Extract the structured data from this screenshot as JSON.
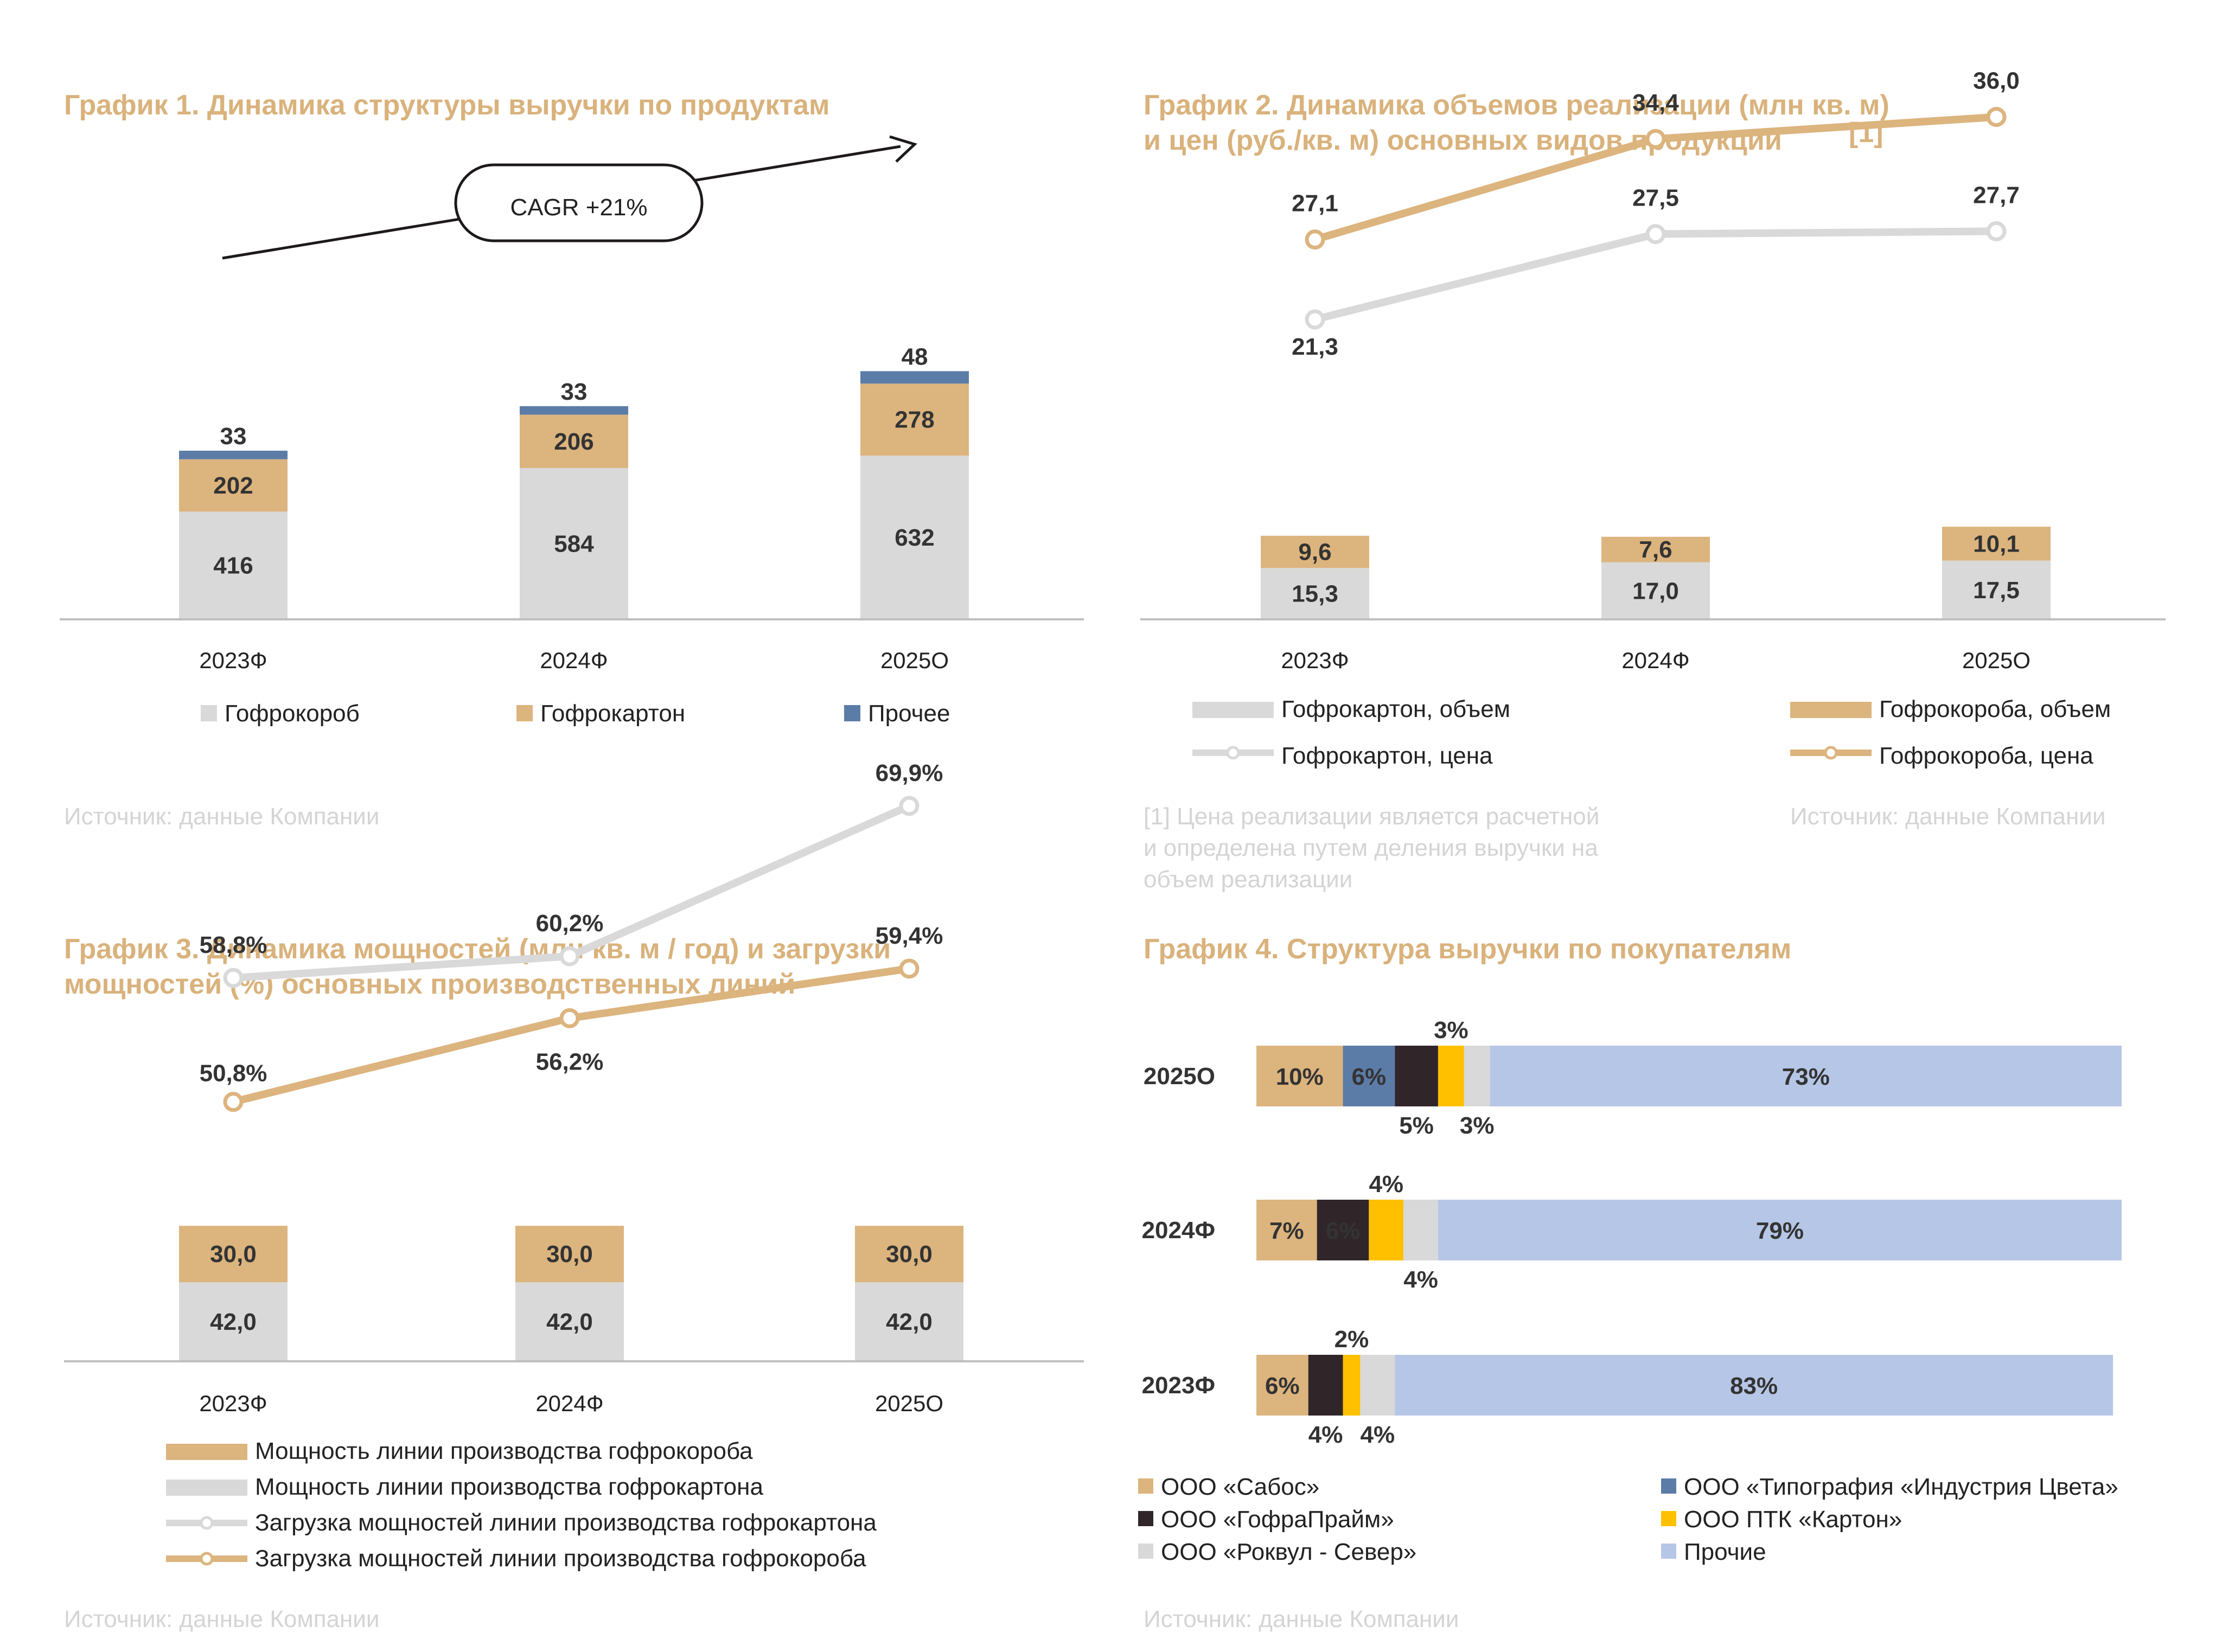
{
  "colors": {
    "tan": "#DCB47E",
    "grey": "#D9D9D9",
    "blue": "#5C7CA8",
    "dark": "#30262A",
    "yellow": "#FFC000",
    "lightblue": "#B6C6E6",
    "title": "#D9B27C",
    "source": "#D4D4D4"
  },
  "chart_data": [
    {
      "id": "chart1",
      "type": "bar",
      "stacked": true,
      "title": "График 1. Динамика структуры выручки по продуктам",
      "categories": [
        "2023Ф",
        "2024Ф",
        "2025О"
      ],
      "series": [
        {
          "name": "Гофрокороб",
          "values": [
            416,
            584,
            632
          ],
          "color": "#D9D9D9"
        },
        {
          "name": "Гофрокартон",
          "values": [
            202,
            206,
            278
          ],
          "color": "#DCB47E"
        },
        {
          "name": "Прочее",
          "values": [
            33,
            33,
            48
          ],
          "color": "#5C7CA8"
        }
      ],
      "annotation": "CAGR +21%",
      "legend_position": "bottom",
      "source": "Источник: данные Компании"
    },
    {
      "id": "chart2",
      "type": "bar+line",
      "stacked": true,
      "title_lines": [
        "График 2. Динамика объемов реализации (млн кв. м)",
        "и цен (руб./кв. м) основных видов продукции"
      ],
      "title_footnote_mark": "[1]",
      "categories": [
        "2023Ф",
        "2024Ф",
        "2025О"
      ],
      "bars": [
        {
          "name": "Гофрокартон, объем",
          "values": [
            15.3,
            17.0,
            17.5
          ],
          "labels": [
            "15,3",
            "17,0",
            "17,5"
          ],
          "color": "#D9D9D9"
        },
        {
          "name": "Гофрокороба, объем",
          "values": [
            9.6,
            7.6,
            10.1
          ],
          "labels": [
            "9,6",
            "7,6",
            "10,1"
          ],
          "color": "#DCB47E"
        }
      ],
      "lines": [
        {
          "name": "Гофрокартон, цена",
          "values": [
            21.3,
            27.5,
            27.7
          ],
          "labels": [
            "21,3",
            "27,5",
            "27,7"
          ],
          "color": "#D9D9D9"
        },
        {
          "name": "Гофрокороба, цена",
          "values": [
            27.1,
            34.4,
            36.0
          ],
          "labels": [
            "27,1",
            "34,4",
            "36,0"
          ],
          "color": "#DCB47E"
        }
      ],
      "footnote_lines": [
        "[1] Цена реализации является расчетной",
        "и определена путем деления выручки на",
        "объем реализации"
      ],
      "source": "Источник: данные Компании"
    },
    {
      "id": "chart3",
      "type": "bar+line",
      "stacked": true,
      "title_lines": [
        "График 3. Динамика мощностей (млн кв. м / год) и загрузки",
        "мощностей (%) основных производственных линий"
      ],
      "categories": [
        "2023Ф",
        "2024Ф",
        "2025О"
      ],
      "bars": [
        {
          "name": "Мощность линии производства гофрокартона",
          "values": [
            42.0,
            42.0,
            42.0
          ],
          "labels": [
            "42,0",
            "42,0",
            "42,0"
          ],
          "color": "#D9D9D9"
        },
        {
          "name": "Мощность линии производства гофрокороба",
          "values": [
            30.0,
            30.0,
            30.0
          ],
          "labels": [
            "30,0",
            "30,0",
            "30,0"
          ],
          "color": "#DCB47E"
        }
      ],
      "lines": [
        {
          "name": "Загрузка мощностей линии производства гофрокартона",
          "values": [
            58.8,
            60.2,
            69.9
          ],
          "labels": [
            "58,8%",
            "60,2%",
            "69,9%"
          ],
          "color": "#D9D9D9"
        },
        {
          "name": "Загрузка мощностей линии производства гофрокороба",
          "values": [
            50.8,
            56.2,
            59.4
          ],
          "labels": [
            "50,8%",
            "56,2%",
            "59,4%"
          ],
          "color": "#DCB47E"
        }
      ],
      "legend": [
        {
          "label": "Мощность линии производства гофрокороба",
          "kind": "bar",
          "color": "#DCB47E"
        },
        {
          "label": "Мощность линии производства гофрокартона",
          "kind": "bar",
          "color": "#D9D9D9"
        },
        {
          "label": "Загрузка мощностей линии производства гофрокартона",
          "kind": "line",
          "color": "#D9D9D9"
        },
        {
          "label": "Загрузка мощностей линии производства гофрокороба",
          "kind": "line",
          "color": "#DCB47E"
        }
      ],
      "source": "Источник: данные Компании"
    },
    {
      "id": "chart4",
      "type": "bar",
      "orientation": "horizontal",
      "stacked": true,
      "title": "График 4. Структура выручки по покупателям",
      "rows": [
        {
          "year": "2025О",
          "segments": [
            {
              "name": "ООО «Сабос»",
              "value": 10,
              "label": "10%"
            },
            {
              "name": "ООО «Типография «Индустрия Цвета»",
              "value": 6,
              "label": "6%"
            },
            {
              "name": "ООО «ГофраПрайм»",
              "value": 5,
              "label": "5%"
            },
            {
              "name": "ООО ПТК «Картон»",
              "value": 3,
              "label": "3%"
            },
            {
              "name": "ООО «Роквул - Север»",
              "value": 3,
              "label": "3%"
            },
            {
              "name": "Прочие",
              "value": 73,
              "label": "73%"
            }
          ]
        },
        {
          "year": "2024Ф",
          "segments": [
            {
              "name": "ООО «Сабос»",
              "value": 7,
              "label": "7%"
            },
            {
              "name": "ООО «ГофраПрайм»",
              "value": 6,
              "label": "6%"
            },
            {
              "name": "ООО ПТК «Картон»",
              "value": 4,
              "label": "4%"
            },
            {
              "name": "ООО «Роквул - Север»",
              "value": 4,
              "label": "4%"
            },
            {
              "name": "Прочие",
              "value": 79,
              "label": "79%"
            }
          ]
        },
        {
          "year": "2023Ф",
          "segments": [
            {
              "name": "ООО «Сабос»",
              "value": 6,
              "label": "6%"
            },
            {
              "name": "ООО «ГофраПрайм»",
              "value": 4,
              "label": "4%"
            },
            {
              "name": "ООО ПТК «Картон»",
              "value": 2,
              "label": "2%"
            },
            {
              "name": "ООО «Роквул - Север»",
              "value": 4,
              "label": "4%"
            },
            {
              "name": "Прочие",
              "value": 83,
              "label": "83%"
            }
          ]
        }
      ],
      "legend": [
        {
          "label": "ООО «Сабос»",
          "color": "#DCB47E"
        },
        {
          "label": "ООО «Типография «Индустрия Цвета»",
          "color": "#5C7CA8"
        },
        {
          "label": "ООО «ГофраПрайм»",
          "color": "#30262A"
        },
        {
          "label": "ООО ПТК «Картон»",
          "color": "#FFC000"
        },
        {
          "label": "ООО «Роквул  - Север»",
          "color": "#D9D9D9"
        },
        {
          "label": "Прочие",
          "color": "#B6C6E6"
        }
      ],
      "source": "Источник: данные Компании"
    }
  ]
}
